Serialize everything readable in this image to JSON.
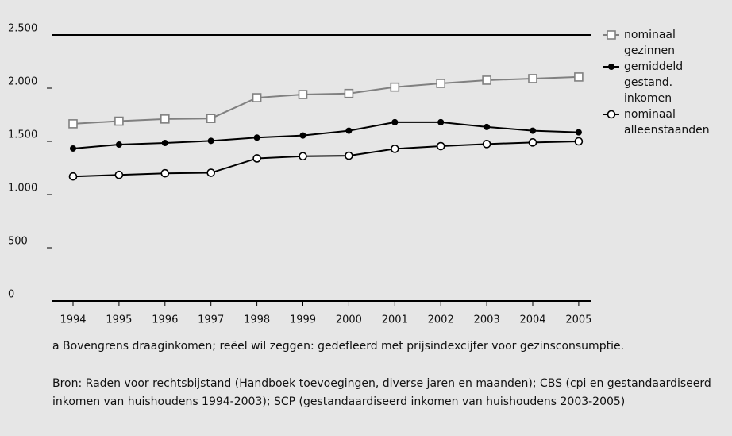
{
  "chart_data": {
    "type": "line",
    "categories": [
      "1994",
      "1995",
      "1996",
      "1997",
      "1998",
      "1999",
      "2000",
      "2001",
      "2002",
      "2003",
      "2004",
      "2005"
    ],
    "series": [
      {
        "name": "nominaal gezinnen",
        "color": "#808080",
        "marker": "square",
        "values": [
          1665,
          1690,
          1710,
          1715,
          1910,
          1940,
          1950,
          2010,
          2045,
          2075,
          2090,
          2105
        ]
      },
      {
        "name": "gemiddeld gestand. inkomen",
        "color": "#000000",
        "marker": "filled-circle",
        "values": [
          1433,
          1470,
          1485,
          1505,
          1535,
          1555,
          1600,
          1680,
          1680,
          1635,
          1600,
          1585
        ]
      },
      {
        "name": "nominaal alleenstaanden",
        "color": "#000000",
        "marker": "open-circle",
        "values": [
          1170,
          1185,
          1200,
          1205,
          1340,
          1360,
          1365,
          1430,
          1455,
          1475,
          1490,
          1500
        ]
      }
    ],
    "ylim": [
      0,
      2500
    ],
    "yticks": [
      0,
      500,
      {
        "value": 1000,
        "label": "1.000"
      },
      {
        "value": 1500,
        "label": "1.500"
      },
      {
        "value": 2000,
        "label": "2.000"
      },
      {
        "value": 2500,
        "label": "2.500"
      }
    ],
    "note": "a Bovengrens draaginkomen; reëel wil zeggen: gedefleerd met prijsindexcijfer voor gezinsconsumptie.",
    "source": "Bron: Raden voor rechtsbijstand (Handboek toevoegingen, diverse jaren en maanden); CBS (cpi en gestandaardiseerd inkomen van huishoudens 1994-2003); SCP (gestandaardiseerd inkomen van huishoudens 2003-2005)"
  }
}
